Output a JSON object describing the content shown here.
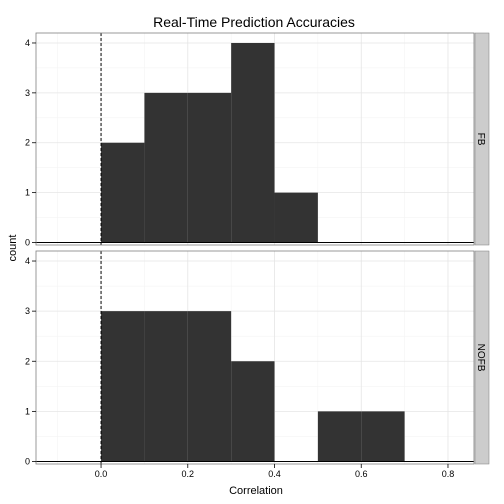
{
  "chart_data": {
    "type": "histogram",
    "title": "Real-Time Prediction Accuracies",
    "xlabel": "Correlation",
    "ylabel": "count",
    "xlim": [
      -0.15,
      0.86
    ],
    "x_ticks": [
      "0.0",
      "0.2",
      "0.4",
      "0.6",
      "0.8"
    ],
    "x_tick_values": [
      0.0,
      0.2,
      0.4,
      0.6,
      0.8
    ],
    "y_ticks": [
      "0",
      "1",
      "2",
      "3",
      "4"
    ],
    "y_tick_values": [
      0,
      1,
      2,
      3,
      4
    ],
    "ylim": [
      -0.05,
      4.2
    ],
    "bin_width": 0.1,
    "reference_line": {
      "x": 0.0,
      "style": "dashed"
    },
    "grid": true,
    "bar_color": "#333333",
    "panels": [
      {
        "strip": "FB",
        "bins": [
          {
            "x0": 0.0,
            "x1": 0.1,
            "count": 2
          },
          {
            "x0": 0.1,
            "x1": 0.2,
            "count": 3
          },
          {
            "x0": 0.2,
            "x1": 0.3,
            "count": 3
          },
          {
            "x0": 0.3,
            "x1": 0.4,
            "count": 4
          },
          {
            "x0": 0.4,
            "x1": 0.5,
            "count": 1
          }
        ]
      },
      {
        "strip": "NOFB",
        "bins": [
          {
            "x0": 0.0,
            "x1": 0.1,
            "count": 3
          },
          {
            "x0": 0.1,
            "x1": 0.2,
            "count": 3
          },
          {
            "x0": 0.2,
            "x1": 0.3,
            "count": 3
          },
          {
            "x0": 0.3,
            "x1": 0.4,
            "count": 2
          },
          {
            "x0": 0.5,
            "x1": 0.6,
            "count": 1
          },
          {
            "x0": 0.6,
            "x1": 0.7,
            "count": 1
          }
        ]
      }
    ]
  }
}
